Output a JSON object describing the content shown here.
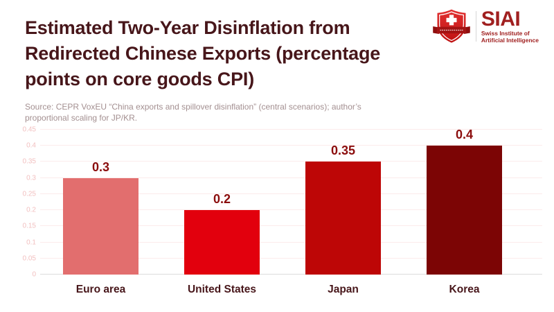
{
  "header": {
    "title_lines": [
      "Estimated Two-Year Disinflation from",
      "Redirected Chinese Exports (percentage",
      "points on core goods CPI)"
    ]
  },
  "logo": {
    "acronym": "SIAI",
    "subtitle_lines": [
      "Swiss Institute of",
      "Artificial Intelligence"
    ],
    "shield_icon": "swiss-shield-cross-ribbon-icon",
    "brand_color": "#a02020"
  },
  "source": {
    "lines": [
      "Source: CEPR VoxEU “China exports and spillover disinflation” (central scenarios); author’s",
      "proportional scaling for JP/KR."
    ]
  },
  "chart_data": {
    "type": "bar",
    "title": "Estimated Two-Year Disinflation from Redirected Chinese Exports (percentage points on core goods CPI)",
    "categories": [
      "Euro area",
      "United States",
      "Japan",
      "Korea"
    ],
    "values": [
      0.3,
      0.2,
      0.35,
      0.4
    ],
    "value_labels": [
      "0.3",
      "0.2",
      "0.35",
      "0.4"
    ],
    "bar_colors": [
      "#e26e6e",
      "#e2000d",
      "#bd0606",
      "#7c0505"
    ],
    "xlabel": "",
    "ylabel": "",
    "ylim": [
      0,
      0.45
    ],
    "yticks": [
      0,
      0.05,
      0.1,
      0.15,
      0.2,
      0.25,
      0.3,
      0.35,
      0.4,
      0.45
    ],
    "ytick_labels": [
      "0",
      "0.05",
      "0.1",
      "0.15",
      "0.2",
      "0.25",
      "0.3",
      "0.35",
      "0.4",
      "0.45"
    ],
    "grid": true,
    "legend": false
  },
  "colors": {
    "title_text": "#47161a",
    "value_label_text": "#8b0d0d",
    "x_label_text": "#47161a",
    "y_tick_text": "#f2c0c0",
    "gridline": "#fcebeb",
    "baseline": "#dcdcdc",
    "source_text": "#a38f90",
    "background": "#ffffff"
  }
}
